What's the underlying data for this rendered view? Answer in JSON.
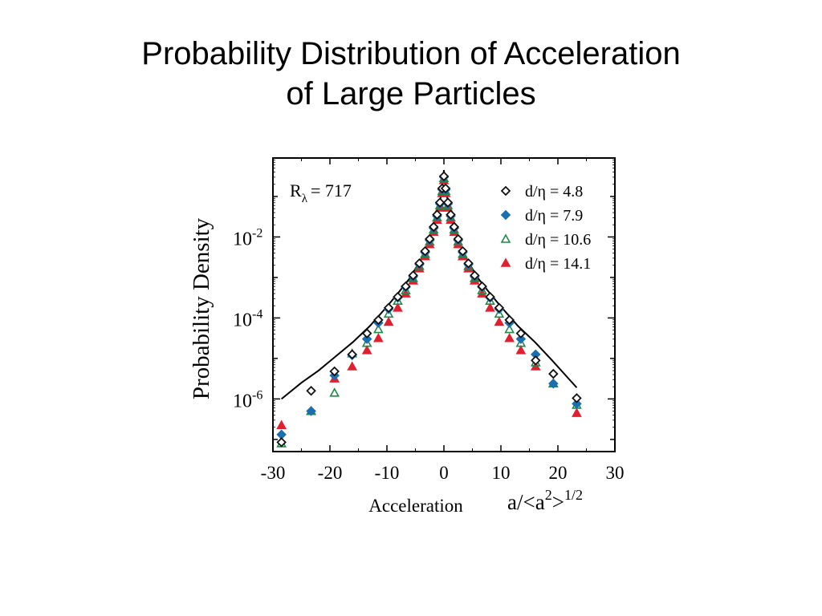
{
  "slide": {
    "title_line1": "Probability Distribution of Acceleration",
    "title_line2": "of Large Particles"
  },
  "chart_data": {
    "type": "scatter",
    "xlabel": "Acceleration",
    "xlabel_formula": "a/<a",
    "xlabel_formula_sup1": "2",
    "xlabel_formula_close": ">",
    "xlabel_formula_sup2": "1/2",
    "ylabel": "Probability Density",
    "xlim": [
      -30,
      30
    ],
    "ylim_log10": [
      -7.3,
      -0.05
    ],
    "y_scale": "log",
    "x_ticks": [
      -30,
      -20,
      -10,
      0,
      10,
      20,
      30
    ],
    "x_tick_labels": [
      "-30",
      "-20",
      "-10",
      "0",
      "10",
      "20",
      "30"
    ],
    "y_ticks": [
      {
        "base": "10",
        "exp": "-2",
        "log10": -2
      },
      {
        "base": "10",
        "exp": "-4",
        "log10": -4
      },
      {
        "base": "10",
        "exp": "-6",
        "log10": -6
      }
    ],
    "annotation": {
      "base": "R",
      "sub": "λ",
      "rest": "= 717"
    },
    "legend_position": "top-right",
    "series": [
      {
        "name": "d/η = 4.8",
        "marker": "diamond-open",
        "color": "#111111",
        "x": [
          -28.5,
          -23.3,
          -19.2,
          -16.1,
          -13.5,
          -11.5,
          -9.7,
          -8.1,
          -6.7,
          -5.4,
          -4.3,
          -3.3,
          -2.5,
          -1.8,
          -1.2,
          -0.7,
          -0.3,
          0,
          0.3,
          0.7,
          1.2,
          1.8,
          2.5,
          3.3,
          4.3,
          5.4,
          6.7,
          8.1,
          9.7,
          11.5,
          13.5,
          16.1,
          19.2,
          23.3
        ],
        "y_log10": [
          -7.07,
          -5.8,
          -5.32,
          -4.9,
          -4.38,
          -4.05,
          -3.75,
          -3.48,
          -3.22,
          -2.95,
          -2.65,
          -2.35,
          -2.05,
          -1.75,
          -1.45,
          -1.15,
          -0.8,
          -0.5,
          -0.8,
          -1.15,
          -1.45,
          -1.75,
          -2.05,
          -2.35,
          -2.65,
          -2.95,
          -3.22,
          -3.48,
          -3.75,
          -4.05,
          -4.38,
          -5.05,
          -5.38,
          -5.98
        ]
      },
      {
        "name": "d/η = 7.9",
        "marker": "diamond-filled",
        "color": "#1a6fb0",
        "x": [
          -28.5,
          -23.3,
          -19.2,
          -16.1,
          -13.5,
          -11.5,
          -9.7,
          -8.1,
          -6.7,
          -5.4,
          -4.3,
          -3.3,
          -2.5,
          -1.8,
          -1.2,
          -0.7,
          -0.3,
          0,
          0.3,
          0.7,
          1.2,
          1.8,
          2.5,
          3.3,
          4.3,
          5.4,
          6.7,
          8.1,
          9.7,
          11.5,
          13.5,
          16.1,
          19.2,
          23.3
        ],
        "y_log10": [
          -6.88,
          -6.3,
          -5.42,
          -4.92,
          -4.52,
          -4.12,
          -3.78,
          -3.5,
          -3.24,
          -2.98,
          -2.68,
          -2.38,
          -2.08,
          -1.78,
          -1.48,
          -1.18,
          -0.83,
          -0.52,
          -0.83,
          -1.18,
          -1.48,
          -1.78,
          -2.08,
          -2.38,
          -2.68,
          -2.98,
          -3.24,
          -3.5,
          -3.78,
          -4.12,
          -4.52,
          -4.9,
          -5.62,
          -6.12
        ]
      },
      {
        "name": "d/η = 10.6",
        "marker": "triangle-open",
        "color": "#1e8a4a",
        "x": [
          -28.5,
          -23.3,
          -19.2,
          -16.1,
          -13.5,
          -11.5,
          -9.7,
          -8.1,
          -6.7,
          -5.4,
          -4.3,
          -3.3,
          -2.5,
          -1.8,
          -1.2,
          -0.7,
          -0.3,
          0,
          0.3,
          0.7,
          1.2,
          1.8,
          2.5,
          3.3,
          4.3,
          5.4,
          6.7,
          8.1,
          9.7,
          11.5,
          13.5,
          16.1,
          19.2,
          23.3
        ],
        "y_log10": [
          -7.1,
          -6.3,
          -5.85,
          -4.88,
          -4.62,
          -4.28,
          -3.9,
          -3.58,
          -3.32,
          -3.02,
          -2.72,
          -2.42,
          -2.12,
          -1.82,
          -1.52,
          -1.22,
          -0.87,
          -0.55,
          -0.87,
          -1.22,
          -1.52,
          -1.82,
          -2.12,
          -2.42,
          -2.72,
          -3.02,
          -3.32,
          -3.58,
          -3.9,
          -4.28,
          -4.62,
          -5.1,
          -5.62,
          -6.15
        ]
      },
      {
        "name": "d/η = 14.1",
        "marker": "triangle-filled",
        "color": "#e02030",
        "x": [
          -28.5,
          -23.3,
          -19.2,
          -16.1,
          -13.5,
          -11.5,
          -9.7,
          -8.1,
          -6.7,
          -5.4,
          -4.3,
          -3.3,
          -2.5,
          -1.8,
          -1.2,
          -0.7,
          -0.3,
          0,
          0.3,
          0.7,
          1.2,
          1.8,
          2.5,
          3.3,
          4.3,
          5.4,
          6.7,
          8.1,
          9.7,
          11.5,
          13.5,
          16.1,
          19.2,
          23.3
        ],
        "y_log10": [
          -6.65,
          -6.3,
          -5.5,
          -5.2,
          -4.8,
          -4.5,
          -4.1,
          -3.75,
          -3.4,
          -3.08,
          -2.78,
          -2.48,
          -2.18,
          -1.88,
          -1.58,
          -1.28,
          -0.92,
          -0.6,
          -0.92,
          -1.28,
          -1.58,
          -1.88,
          -2.18,
          -2.48,
          -2.78,
          -3.08,
          -3.4,
          -3.75,
          -4.1,
          -4.5,
          -4.8,
          -5.2,
          -5.62,
          -6.35
        ]
      }
    ],
    "fit_curve": {
      "x": [
        -28.5,
        -25,
        -22,
        -19,
        -16,
        -13,
        -10,
        -8,
        -6,
        -4,
        -2.5,
        -1.5,
        -0.8,
        -0.3,
        0,
        0.3,
        0.8,
        1.5,
        2.5,
        4,
        6,
        8,
        10,
        13,
        16,
        19,
        23.3
      ],
      "y_log10": [
        -6.0,
        -5.6,
        -5.3,
        -4.95,
        -4.6,
        -4.2,
        -3.72,
        -3.38,
        -3.02,
        -2.55,
        -2.08,
        -1.65,
        -1.22,
        -0.78,
        -0.35,
        -0.78,
        -1.22,
        -1.65,
        -2.08,
        -2.55,
        -3.02,
        -3.38,
        -3.72,
        -4.2,
        -4.6,
        -5.05,
        -5.72
      ],
      "color": "#000000"
    }
  }
}
